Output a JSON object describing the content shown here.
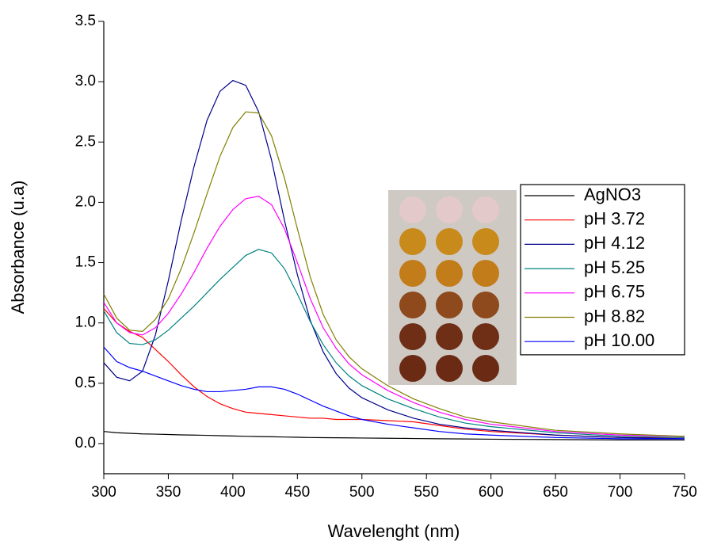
{
  "chart_data": {
    "type": "line",
    "x_label": "Wavelenght (nm)",
    "y_label": "Absorbance (u.a)",
    "xlim": [
      300,
      750
    ],
    "xticks": [
      300,
      350,
      400,
      450,
      500,
      550,
      600,
      650,
      700,
      750
    ],
    "ylim": [
      -0.25,
      3.5
    ],
    "yticks": [
      {
        "value": 0,
        "label": "0.0"
      },
      0.5,
      {
        "value": 1,
        "label": "1.0"
      },
      1.5,
      {
        "value": 2,
        "label": "2.0"
      },
      2.5,
      {
        "value": 3,
        "label": "3.0"
      },
      3.5
    ],
    "legend": "right",
    "x": [
      300,
      310,
      320,
      330,
      340,
      350,
      360,
      370,
      380,
      390,
      400,
      410,
      420,
      430,
      440,
      450,
      460,
      470,
      480,
      490,
      500,
      520,
      540,
      560,
      580,
      600,
      650,
      700,
      750
    ],
    "series": [
      {
        "name": "AgNO3",
        "color": "#000000",
        "values": [
          0.1,
          0.09,
          0.085,
          0.08,
          0.078,
          0.075,
          0.072,
          0.07,
          0.068,
          0.065,
          0.063,
          0.06,
          0.058,
          0.056,
          0.054,
          0.052,
          0.05,
          0.049,
          0.048,
          0.047,
          0.046,
          0.044,
          0.042,
          0.04,
          0.038,
          0.036,
          0.033,
          0.03,
          0.03
        ]
      },
      {
        "name": "pH 3.72",
        "color": "#ff0000",
        "values": [
          1.12,
          1.0,
          0.93,
          0.88,
          0.78,
          0.68,
          0.57,
          0.47,
          0.39,
          0.33,
          0.29,
          0.26,
          0.25,
          0.24,
          0.23,
          0.22,
          0.21,
          0.21,
          0.2,
          0.2,
          0.2,
          0.19,
          0.18,
          0.15,
          0.12,
          0.1,
          0.07,
          0.05,
          0.05
        ]
      },
      {
        "name": "pH 4.12",
        "color": "#00008b",
        "values": [
          0.67,
          0.55,
          0.52,
          0.6,
          0.9,
          1.35,
          1.85,
          2.3,
          2.68,
          2.92,
          3.01,
          2.97,
          2.75,
          2.35,
          1.85,
          1.4,
          1.02,
          0.76,
          0.58,
          0.46,
          0.38,
          0.28,
          0.21,
          0.16,
          0.13,
          0.11,
          0.07,
          0.05,
          0.04
        ]
      },
      {
        "name": "pH 5.25",
        "color": "#008080",
        "values": [
          1.1,
          0.92,
          0.83,
          0.82,
          0.86,
          0.94,
          1.04,
          1.14,
          1.25,
          1.36,
          1.46,
          1.56,
          1.61,
          1.58,
          1.45,
          1.24,
          1.01,
          0.82,
          0.67,
          0.56,
          0.48,
          0.37,
          0.29,
          0.22,
          0.17,
          0.14,
          0.09,
          0.06,
          0.05
        ]
      },
      {
        "name": "pH 6.75",
        "color": "#ff00ff",
        "values": [
          1.17,
          1.0,
          0.92,
          0.9,
          0.96,
          1.08,
          1.24,
          1.42,
          1.62,
          1.8,
          1.94,
          2.03,
          2.05,
          1.98,
          1.78,
          1.5,
          1.2,
          0.96,
          0.79,
          0.66,
          0.57,
          0.44,
          0.34,
          0.26,
          0.2,
          0.16,
          0.1,
          0.07,
          0.06
        ]
      },
      {
        "name": "pH 8.82",
        "color": "#808000",
        "values": [
          1.24,
          1.04,
          0.94,
          0.93,
          1.03,
          1.2,
          1.45,
          1.75,
          2.07,
          2.38,
          2.62,
          2.75,
          2.74,
          2.55,
          2.2,
          1.78,
          1.38,
          1.07,
          0.86,
          0.72,
          0.62,
          0.48,
          0.37,
          0.29,
          0.22,
          0.18,
          0.11,
          0.08,
          0.06
        ]
      },
      {
        "name": "pH 10.00",
        "color": "#0000ff",
        "values": [
          0.8,
          0.68,
          0.63,
          0.6,
          0.56,
          0.52,
          0.48,
          0.45,
          0.43,
          0.43,
          0.44,
          0.45,
          0.47,
          0.47,
          0.45,
          0.41,
          0.36,
          0.31,
          0.27,
          0.23,
          0.2,
          0.16,
          0.13,
          0.1,
          0.08,
          0.07,
          0.05,
          0.04,
          0.04
        ]
      }
    ]
  }
}
